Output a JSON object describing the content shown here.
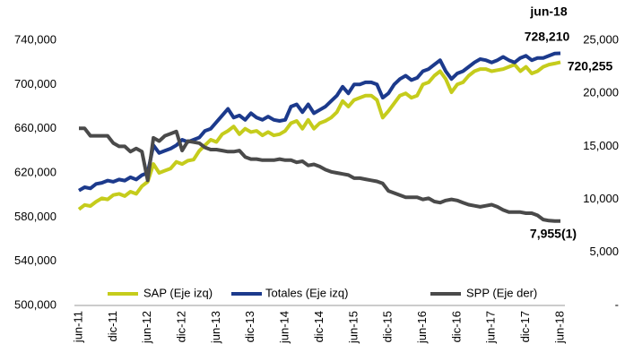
{
  "chart_data": {
    "type": "line",
    "categories": [
      "jun-11",
      null,
      null,
      null,
      null,
      null,
      "dic-11",
      null,
      null,
      null,
      null,
      null,
      "jun-12",
      null,
      null,
      null,
      null,
      null,
      "dic-12",
      null,
      null,
      null,
      null,
      null,
      "jun-13",
      null,
      null,
      null,
      null,
      null,
      "dic-13",
      null,
      null,
      null,
      null,
      null,
      "jun-14",
      null,
      null,
      null,
      null,
      null,
      "dic-14",
      null,
      null,
      null,
      null,
      null,
      "jun-15",
      null,
      null,
      null,
      null,
      null,
      "dic-15",
      null,
      null,
      null,
      null,
      null,
      "jun-16",
      null,
      null,
      null,
      null,
      null,
      "dic-16",
      null,
      null,
      null,
      null,
      null,
      "jun-17",
      null,
      null,
      null,
      null,
      null,
      "dic-17",
      null,
      null,
      null,
      null,
      null,
      "jun-18"
    ],
    "series": [
      {
        "name": "SAP (Eje izq)",
        "color": "#c5cc1c",
        "values": [
          587000,
          591000,
          590000,
          594000,
          597000,
          596000,
          600000,
          601000,
          599000,
          603000,
          601000,
          608000,
          612000,
          628000,
          620000,
          622000,
          624000,
          630000,
          628000,
          631000,
          632000,
          640000,
          645000,
          650000,
          648000,
          655000,
          658000,
          662000,
          655000,
          660000,
          657000,
          658000,
          654000,
          657000,
          654000,
          655000,
          658000,
          665000,
          667000,
          660000,
          668000,
          660000,
          665000,
          667000,
          670000,
          675000,
          685000,
          680000,
          686000,
          688000,
          690000,
          690000,
          686000,
          670000,
          676000,
          683000,
          690000,
          692000,
          688000,
          690000,
          700000,
          702000,
          708000,
          712000,
          705000,
          693000,
          700000,
          702000,
          708000,
          712000,
          714000,
          714000,
          712000,
          713000,
          714000,
          716000,
          718000,
          712000,
          716000,
          710000,
          712000,
          716000,
          718000,
          719000,
          720255
        ]
      },
      {
        "name": "Totales (Eje izq)",
        "color": "#1c3a8c",
        "values": [
          604000,
          607000,
          606000,
          610000,
          611000,
          613000,
          612000,
          614000,
          613000,
          616000,
          614000,
          618000,
          620000,
          645000,
          638000,
          640000,
          642000,
          645000,
          650000,
          648000,
          650000,
          652000,
          658000,
          660000,
          666000,
          672000,
          678000,
          670000,
          672000,
          668000,
          674000,
          670000,
          668000,
          671000,
          668000,
          667000,
          668000,
          680000,
          682000,
          675000,
          682000,
          674000,
          677000,
          680000,
          685000,
          690000,
          698000,
          692000,
          700000,
          700000,
          702000,
          702000,
          700000,
          688000,
          692000,
          700000,
          705000,
          708000,
          704000,
          706000,
          712000,
          714000,
          718000,
          722000,
          712000,
          705000,
          710000,
          712000,
          716000,
          720000,
          723000,
          722000,
          720000,
          722000,
          725000,
          722000,
          720000,
          724000,
          726000,
          722000,
          724000,
          724000,
          726000,
          728000,
          728210
        ]
      },
      {
        "name": "SPP (Eje der)",
        "color": "#4a4a4a",
        "axis": "y2",
        "values": [
          16700,
          16700,
          16000,
          16000,
          16000,
          16000,
          15300,
          15000,
          15000,
          14500,
          14800,
          14500,
          11800,
          15800,
          15500,
          16000,
          16200,
          16400,
          14600,
          15500,
          15400,
          15300,
          14900,
          14700,
          14700,
          14600,
          14500,
          14500,
          14600,
          14000,
          13800,
          13800,
          13700,
          13700,
          13700,
          13800,
          13700,
          13700,
          13500,
          13600,
          13200,
          13300,
          13100,
          12800,
          12600,
          12500,
          12400,
          12300,
          12000,
          12000,
          11900,
          11800,
          11700,
          11500,
          10800,
          10600,
          10400,
          10200,
          10200,
          10200,
          10000,
          10100,
          9800,
          9700,
          9900,
          10000,
          9900,
          9700,
          9500,
          9400,
          9300,
          9400,
          9500,
          9300,
          9000,
          8800,
          8800,
          8800,
          8700,
          8700,
          8500,
          8100,
          8000,
          7955,
          7955
        ]
      }
    ],
    "ylim": [
      500000,
      740000
    ],
    "yticks": [
      {
        "value": 500000,
        "label": "500,000"
      },
      {
        "value": 540000,
        "label": "540,000"
      },
      {
        "value": 580000,
        "label": "580,000"
      },
      {
        "value": 620000,
        "label": "620,000"
      },
      {
        "value": 660000,
        "label": "660,000"
      },
      {
        "value": 700000,
        "label": "700,000"
      },
      {
        "value": 740000,
        "label": "740,000"
      }
    ],
    "y2lim": [
      0,
      25000
    ],
    "y2ticks": [
      {
        "value": 0,
        "label": "-"
      },
      {
        "value": 5000,
        "label": "5,000"
      },
      {
        "value": 10000,
        "label": "10,000"
      },
      {
        "value": 15000,
        "label": "15,000"
      },
      {
        "value": 20000,
        "label": "20,000"
      },
      {
        "value": 25000,
        "label": "25,000"
      }
    ],
    "annotations": [
      "jun-18",
      "728,210",
      "720,255",
      "7,955(1)"
    ],
    "legend": "bottom"
  }
}
